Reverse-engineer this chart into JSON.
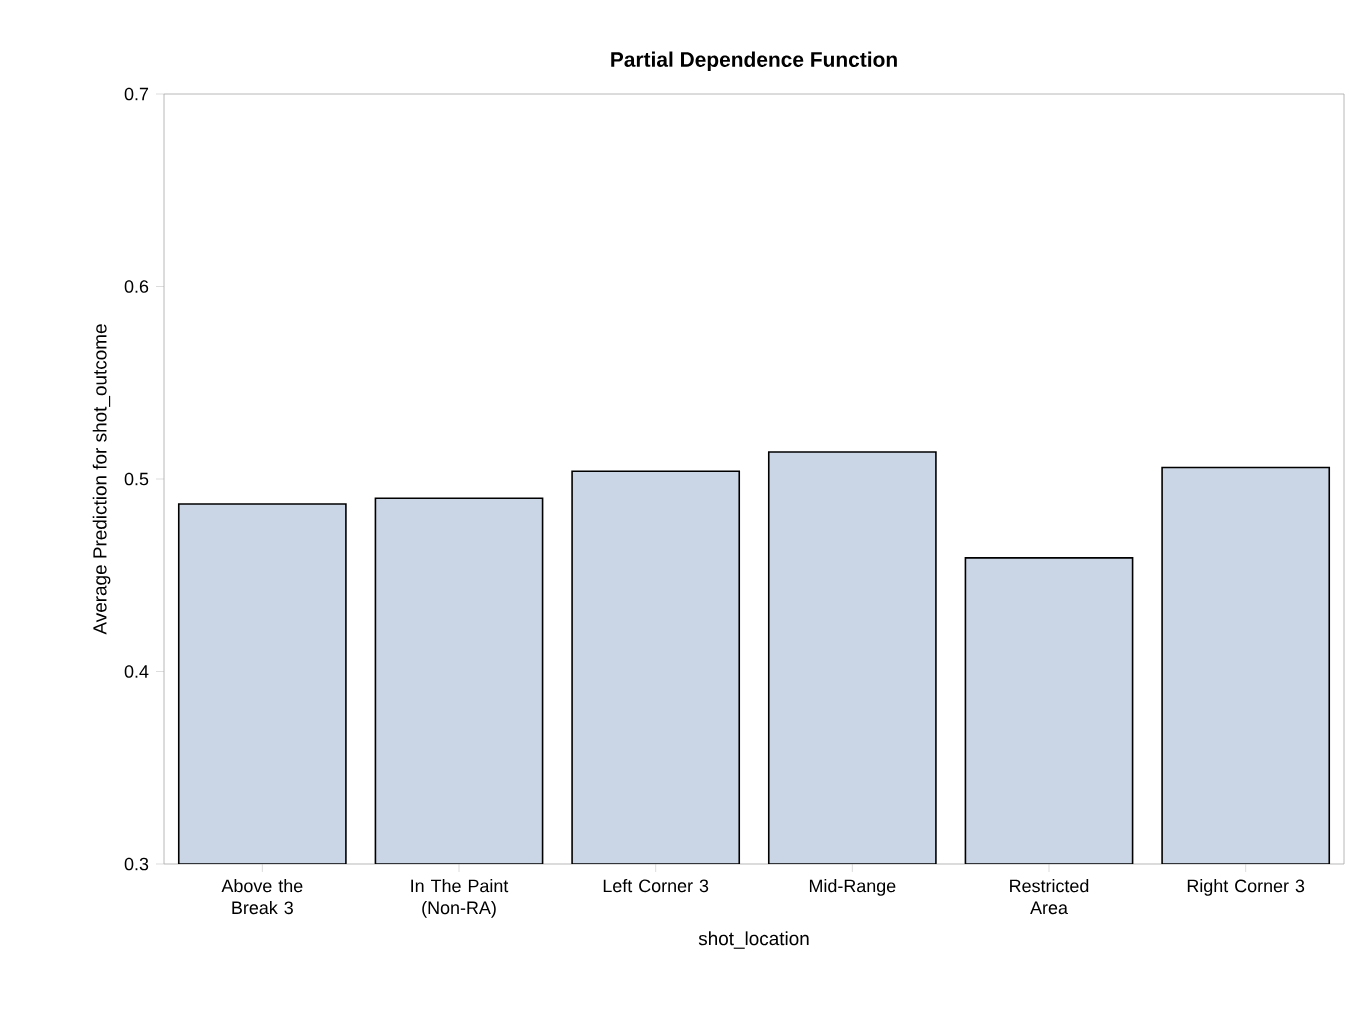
{
  "chart_data": {
    "type": "bar",
    "title": "Partial Dependence Function",
    "xlabel": "shot_location",
    "ylabel": "Average Prediction for shot_outcome",
    "categories": [
      "Above the Break 3",
      "In The Paint (Non-RA)",
      "Left Corner 3",
      "Mid-Range",
      "Restricted Area",
      "Right Corner 3"
    ],
    "values": [
      0.487,
      0.49,
      0.504,
      0.514,
      0.459,
      0.506
    ],
    "color": "#cad5e5",
    "ylim": [
      0.3,
      0.7
    ],
    "yticks": [
      0.3,
      0.4,
      0.5,
      0.6,
      0.7
    ]
  }
}
